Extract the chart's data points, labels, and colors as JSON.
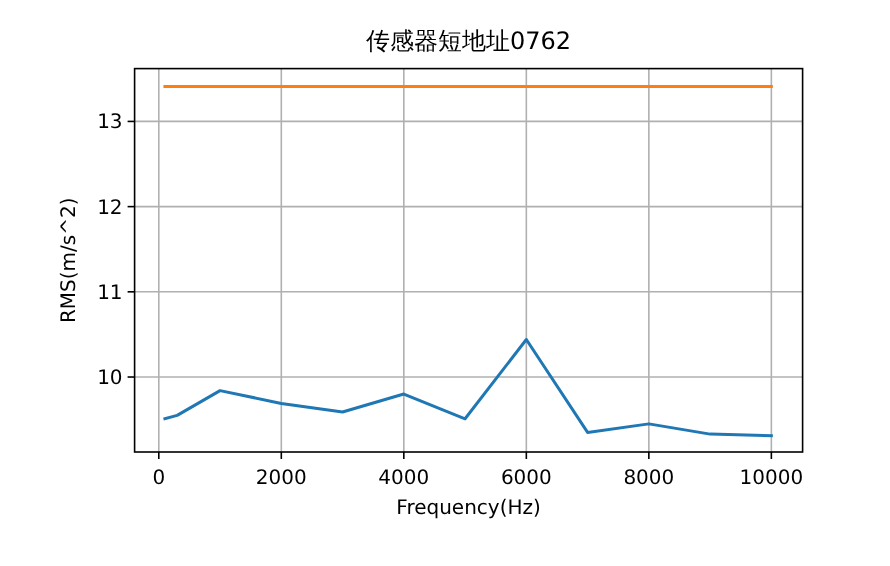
{
  "chart_data": {
    "type": "line",
    "title": "传感器短地址0762",
    "xlabel": "Frequency(Hz)",
    "ylabel": "RMS(m/s^2)",
    "xlim": [
      -395,
      10510
    ],
    "ylim": [
      9.12,
      13.62
    ],
    "xticks": [
      0,
      2000,
      4000,
      6000,
      8000,
      10000
    ],
    "yticks": [
      10,
      11,
      12,
      13
    ],
    "grid": true,
    "series": [
      {
        "color": "#1f77b4",
        "x": [
          100,
          300,
          1000,
          2000,
          3000,
          4000,
          5000,
          6000,
          7000,
          8000,
          9000,
          10000
        ],
        "values": [
          9.51,
          9.55,
          9.84,
          9.69,
          9.59,
          9.8,
          9.51,
          10.44,
          9.35,
          9.45,
          9.33,
          9.31
        ]
      },
      {
        "color": "#ff7f0e",
        "x": [
          100,
          10000
        ],
        "values": [
          13.41,
          13.41
        ]
      }
    ]
  }
}
